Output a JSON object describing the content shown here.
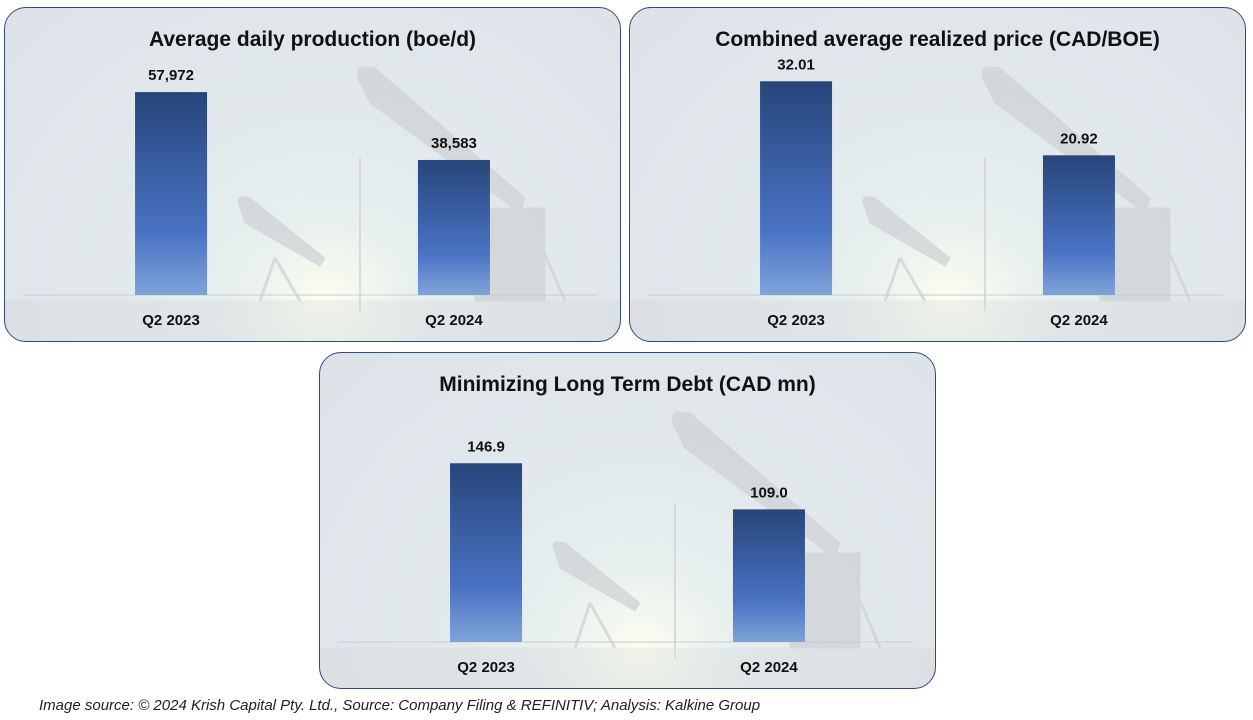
{
  "chart_data": [
    {
      "type": "bar",
      "title": "Average daily production (boe/d)",
      "categories": [
        "Q2 2023",
        "Q2 2024"
      ],
      "values": [
        57972,
        38583
      ],
      "value_labels": [
        "57,972",
        "38,583"
      ],
      "xlabel": "",
      "ylabel": "",
      "ylim": [
        0,
        62000
      ],
      "grid": false,
      "legend": "none"
    },
    {
      "type": "bar",
      "title": "Combined average realized price (CAD/BOE)",
      "categories": [
        "Q2 2023",
        "Q2 2024"
      ],
      "values": [
        32.01,
        20.92
      ],
      "value_labels": [
        "32.01",
        "20.92"
      ],
      "xlabel": "",
      "ylabel": "",
      "ylim": [
        0,
        32.5
      ],
      "grid": false,
      "legend": "none"
    },
    {
      "type": "bar",
      "title": "Minimizing Long Term Debt (CAD mn)",
      "categories": [
        "Q2 2023",
        "Q2 2024"
      ],
      "values": [
        146.9,
        109.0
      ],
      "value_labels": [
        "146.9",
        "109.0"
      ],
      "xlabel": "",
      "ylabel": "",
      "ylim": [
        0,
        180
      ],
      "grid": false,
      "legend": "none"
    }
  ],
  "colors": {
    "bar_top": "#27457a",
    "bar_bottom": "#7fa3d9",
    "panel_border": "#2f4b7c"
  },
  "footnote": "Image source: © 2024 Krish Capital Pty. Ltd., Source: Company Filing & REFINITIV; Analysis: Kalkine Group"
}
